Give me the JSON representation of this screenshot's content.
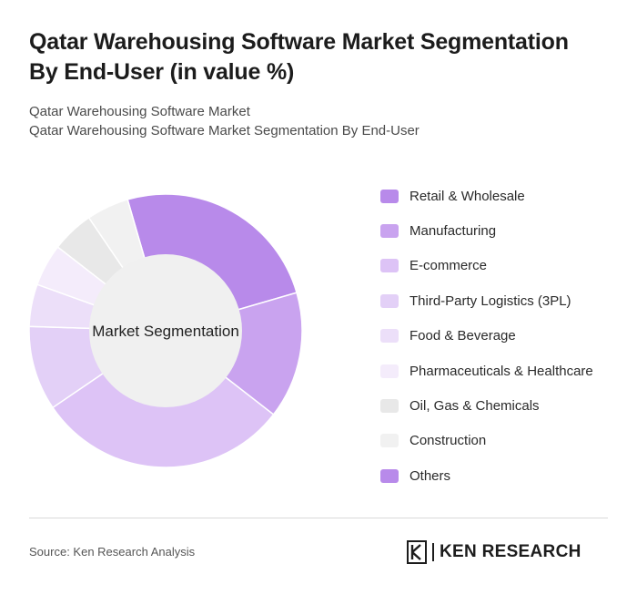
{
  "header": {
    "title_line1": "Qatar Warehousing Software Market Segmentation",
    "title_line2": "By End-User (in value %)",
    "subtitle_line1": "Qatar Warehousing Software Market",
    "subtitle_line2": "Qatar Warehousing Software Market Segmentation By End-User"
  },
  "chart_data": {
    "type": "pie",
    "variant": "donut",
    "center_label": "Market Segmentation",
    "legend_position": "right",
    "categories": [
      "Retail & Wholesale",
      "Manufacturing",
      "E-commerce",
      "Third-Party Logistics (3PL)",
      "Food & Beverage",
      "Pharmaceuticals & Healthcare",
      "Oil, Gas & Chemicals",
      "Construction",
      "Others"
    ],
    "values": [
      25,
      15,
      30,
      10,
      5,
      5,
      5,
      5,
      0
    ],
    "colors": [
      "#b88aea",
      "#c9a3ef",
      "#ddc3f6",
      "#e3d0f7",
      "#ecdff9",
      "#f4ecfb",
      "#e8e8e8",
      "#f1f1f1",
      "#b88aea"
    ]
  },
  "footer": {
    "source": "Source: Ken Research Analysis",
    "logo_text": "KEN RESEARCH"
  }
}
